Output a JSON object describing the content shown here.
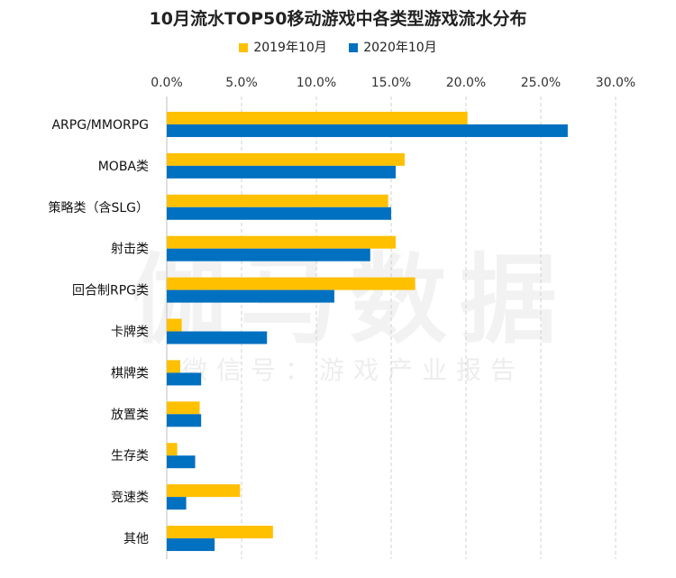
{
  "chart_data": {
    "type": "bar",
    "orientation": "horizontal",
    "title": "10月流水TOP50移动游戏中各类型游戏流水分布",
    "categories": [
      "ARPG/MMORPG",
      "MOBA类",
      "策略类（含SLG）",
      "射击类",
      "回合制RPG类",
      "卡牌类",
      "棋牌类",
      "放置类",
      "生存类",
      "竞速类",
      "其他"
    ],
    "series": [
      {
        "name": "2019年10月",
        "color": "#FFC000",
        "values": [
          20.1,
          15.9,
          14.8,
          15.3,
          16.6,
          1.0,
          0.9,
          2.2,
          0.7,
          4.9,
          7.1
        ]
      },
      {
        "name": "2020年10月",
        "color": "#0070C0",
        "values": [
          26.8,
          15.3,
          15.0,
          13.6,
          11.2,
          6.7,
          2.3,
          2.3,
          1.9,
          1.3,
          3.2
        ]
      }
    ],
    "xlim": [
      0,
      30
    ],
    "xticks": [
      "0.0%",
      "5.0%",
      "10.0%",
      "15.0%",
      "20.0%",
      "25.0%",
      "30.0%"
    ],
    "xtick_values": [
      0,
      5,
      10,
      15,
      20,
      25,
      30
    ],
    "grid": "vertical dashed",
    "legend_position": "top",
    "x_axis_position": "top"
  },
  "watermark": {
    "main": "伽马数据",
    "sub": "微信号：游戏产业报告"
  }
}
